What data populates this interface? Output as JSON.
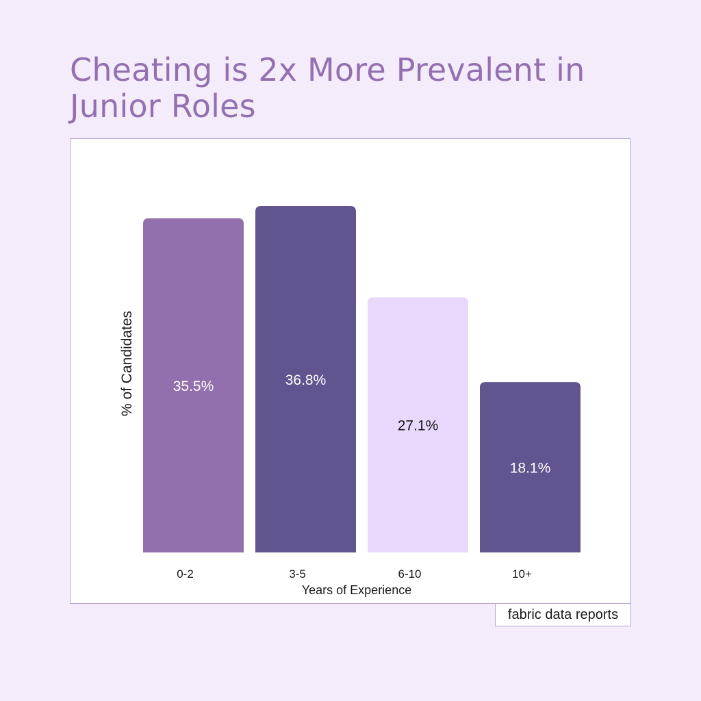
{
  "header": {
    "title": "Cheating is 2x More Prevalent in Junior Roles"
  },
  "footer": {
    "source": "fabric data reports"
  },
  "chart_data": {
    "type": "bar",
    "title": "Cheating is 2x More Prevalent in Junior Roles",
    "xlabel": "Years of Experience",
    "ylabel": "% of Candidates",
    "categories": [
      "0-2",
      "3-5",
      "6-10",
      "10+"
    ],
    "values": [
      35.5,
      36.8,
      27.1,
      18.1
    ],
    "value_labels": [
      "35.5%",
      "36.8%",
      "27.1%",
      "18.1%"
    ],
    "ylim": [
      0,
      40
    ],
    "grid": false,
    "legend": "none",
    "colors": {
      "bars": [
        "#9370ad",
        "#62558f",
        "#e7d8fc",
        "#62558f"
      ],
      "value_label_colors": [
        "#ffffff",
        "#ffffff",
        "#1a1a1a",
        "#ffffff"
      ]
    }
  }
}
